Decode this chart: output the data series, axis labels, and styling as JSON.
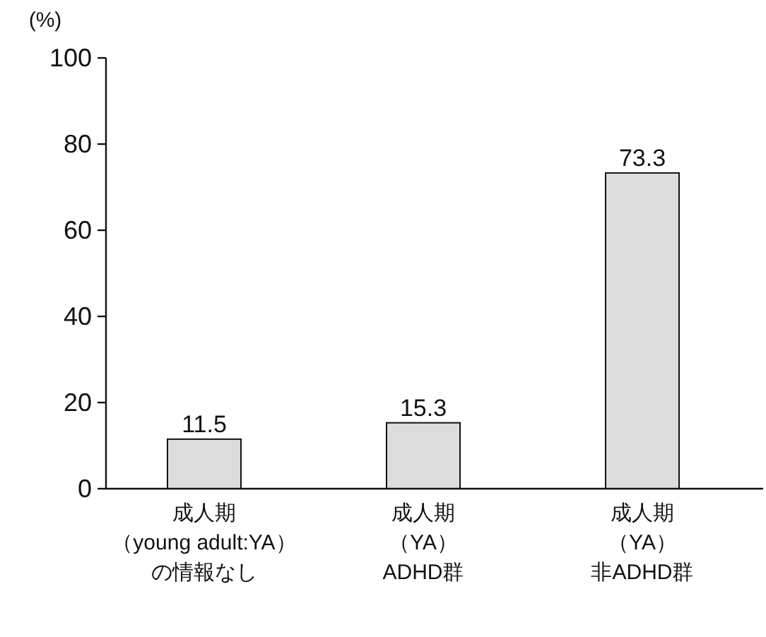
{
  "chart_data": {
    "type": "bar",
    "ylabel": "(%)",
    "categories": [
      "成人期（young adult:YA）の情報なし",
      "成人期（YA）ADHD群",
      "成人期（YA）非ADHD群"
    ],
    "values": [
      11.5,
      15.3,
      73.3
    ],
    "color": "#dcdcdc",
    "data_labels": true,
    "ylim": [
      0,
      100
    ],
    "yticks": [
      0,
      20,
      40,
      60,
      80,
      100
    ],
    "grid": false
  }
}
